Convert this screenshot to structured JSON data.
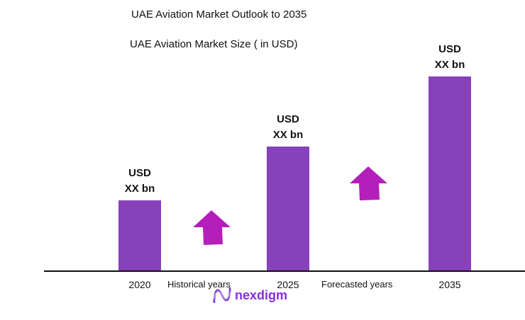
{
  "chart_data": {
    "type": "bar",
    "title": "UAE Aviation Market Outlook to 2035",
    "subtitle": "UAE Aviation Market Size ( in USD)",
    "categories": [
      "2020",
      "2025",
      "2035"
    ],
    "data_labels": [
      {
        "line1": "USD",
        "line2": "XX bn"
      },
      {
        "line1": "USD",
        "line2": "XX bn"
      },
      {
        "line1": "USD",
        "line2": "XX bn"
      }
    ],
    "period_labels": [
      "Historical years",
      "Forecasted years"
    ],
    "grid": false,
    "bar_color": "#8741bb",
    "arrow_color": "#b41fb9"
  },
  "brand": {
    "name": "nexdigm",
    "color": "#8a2be2"
  }
}
